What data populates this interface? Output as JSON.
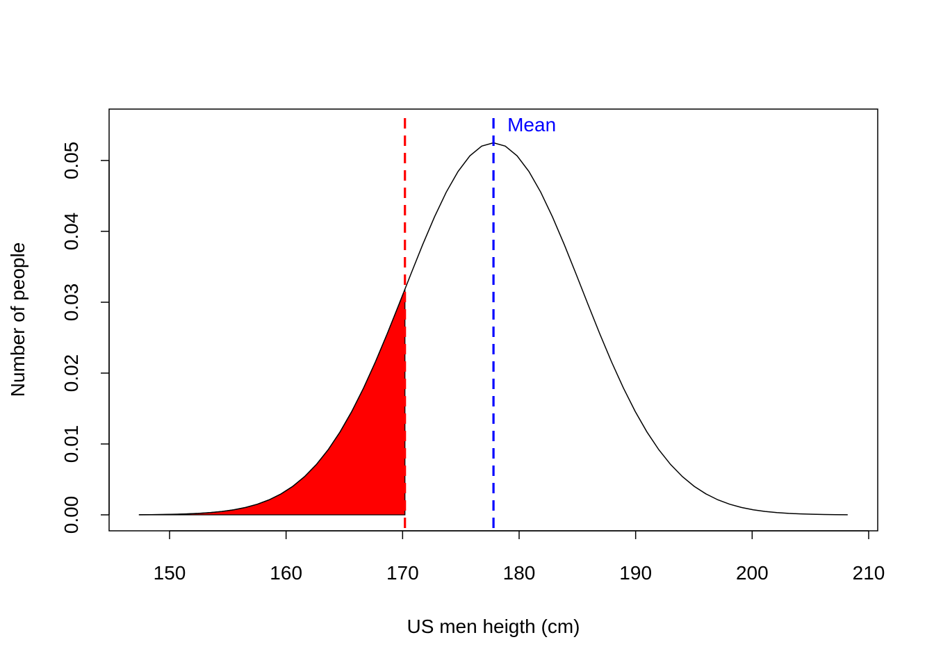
{
  "chart_data": {
    "type": "area",
    "title": "",
    "xlabel": "US men heigth (cm)",
    "ylabel": "Number of people",
    "xlim": [
      145,
      210
    ],
    "ylim": [
      -0.002,
      0.057
    ],
    "x_ticks": [
      150,
      160,
      170,
      180,
      190,
      200,
      210
    ],
    "x_tick_labels": [
      "150",
      "160",
      "170",
      "180",
      "190",
      "200",
      "210"
    ],
    "y_ticks": [
      0.0,
      0.01,
      0.02,
      0.03,
      0.04,
      0.05
    ],
    "y_tick_labels": [
      "0.00",
      "0.01",
      "0.02",
      "0.03",
      "0.04",
      "0.05"
    ],
    "grid": false,
    "curve": {
      "description": "normal density",
      "mean": 177.8,
      "sd": 7.6,
      "x_range": [
        147.4,
        208.2
      ],
      "color": "#000000"
    },
    "shaded_region": {
      "x_from": 147.4,
      "x_to": 170.2,
      "color": "#ff0000"
    },
    "vlines": [
      {
        "x": 170.2,
        "color": "#ff0000",
        "style": "dashed",
        "label": ""
      },
      {
        "x": 177.8,
        "color": "#0000ff",
        "style": "dashed",
        "label": "Mean"
      }
    ]
  }
}
